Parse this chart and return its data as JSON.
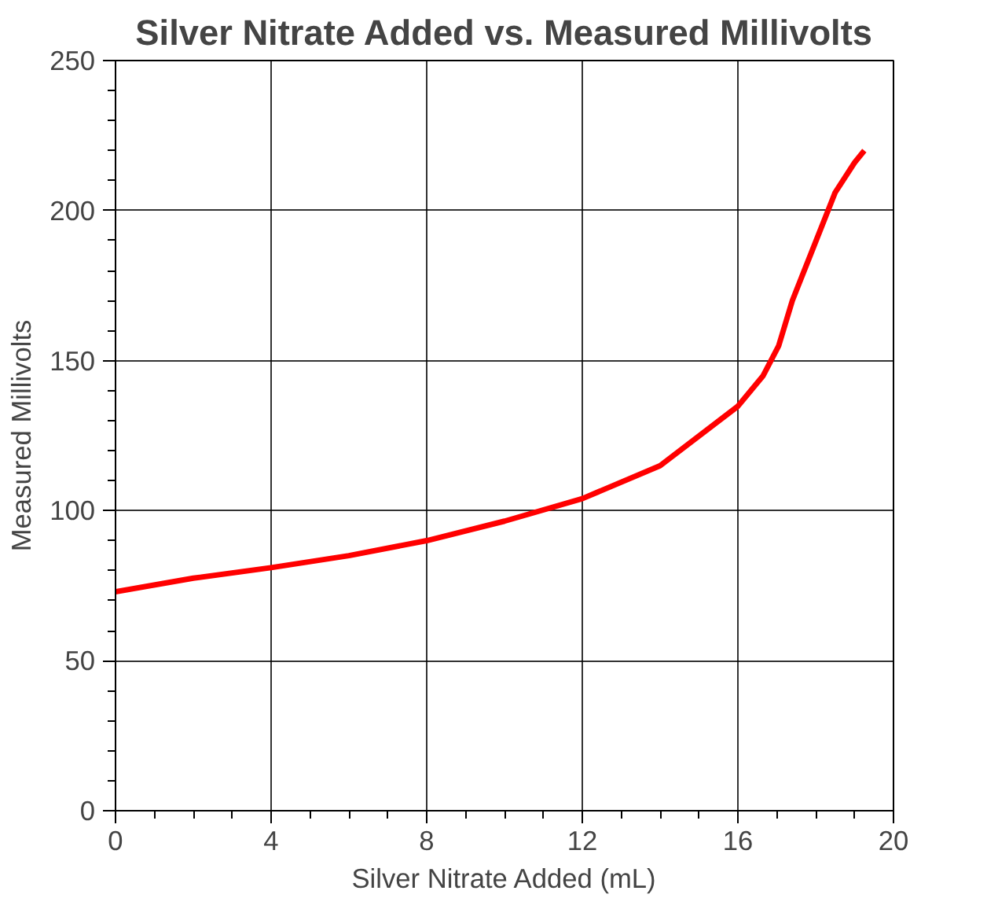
{
  "chart_data": {
    "type": "line",
    "title": "Silver Nitrate Added vs. Measured Millivolts",
    "xlabel": "Silver Nitrate Added (mL)",
    "ylabel": "Measured Millivolts",
    "x": [
      0,
      2,
      4,
      6,
      8,
      10,
      12,
      14,
      16,
      16.65,
      17.05,
      17.4,
      17.95,
      18.5,
      19.0,
      19.25
    ],
    "series": [
      {
        "color": "#ff0000",
        "values": [
          73,
          77.5,
          81,
          85,
          90,
          96.5,
          104,
          115,
          134.8,
          145,
          155,
          170,
          188,
          206,
          216,
          220
        ]
      }
    ],
    "xlim": [
      0,
      20
    ],
    "ylim": [
      0,
      250
    ],
    "xticks": [
      0,
      4,
      8,
      12,
      16,
      20
    ],
    "yticks": [
      0,
      50,
      100,
      150,
      200,
      250
    ],
    "grid": true,
    "marker": "none",
    "line_style": "solid"
  }
}
